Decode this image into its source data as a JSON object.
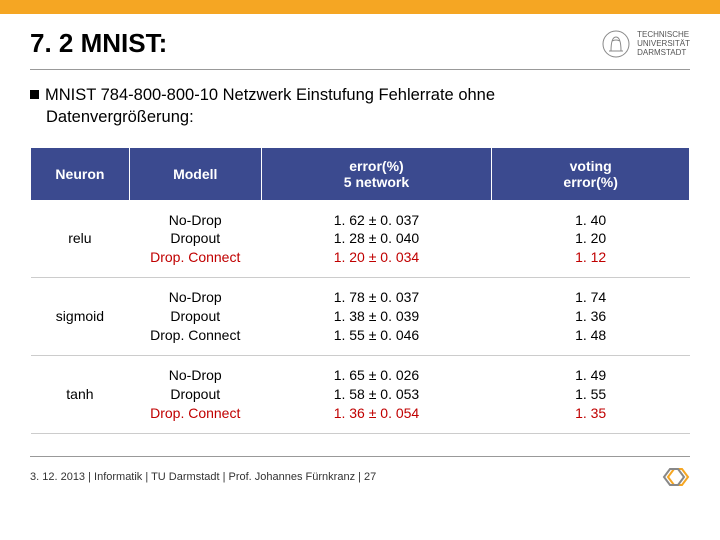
{
  "brand_bar_color": "#f5a623",
  "header": {
    "title": "7. 2 MNIST:",
    "university": {
      "line1": "TECHNISCHE",
      "line2": "UNIVERSITÄT",
      "line3": "DARMSTADT"
    }
  },
  "body": {
    "bullet_line1": "MNIST 784-800-800-10 Netzwerk Einstufung Fehlerrate ohne",
    "bullet_line2": "Datenvergrößerung:"
  },
  "table": {
    "headers": {
      "neuron": "Neuron",
      "model": "Modell",
      "err5": "error(%)\n5 network",
      "vote": "voting\nerror(%)"
    },
    "rows": [
      {
        "neuron": "relu",
        "models": [
          "No-Drop",
          "Dropout",
          "Drop. Connect"
        ],
        "err5": [
          "1. 62 ± 0. 037",
          "1. 28 ± 0. 040",
          "1. 20 ± 0. 034"
        ],
        "vote": [
          "1. 40",
          "1. 20",
          "1. 12"
        ],
        "highlight_index": 2
      },
      {
        "neuron": "sigmoid",
        "models": [
          "No-Drop",
          "Dropout",
          "Drop. Connect"
        ],
        "err5": [
          "1. 78 ± 0. 037",
          "1. 38 ± 0. 039",
          "1. 55 ± 0. 046"
        ],
        "vote": [
          "1. 74",
          "1. 36",
          "1. 48"
        ],
        "highlight_index": -1
      },
      {
        "neuron": "tanh",
        "models": [
          "No-Drop",
          "Dropout",
          "Drop. Connect"
        ],
        "err5": [
          "1. 65 ± 0. 026",
          "1. 58 ± 0. 053",
          "1. 36 ± 0. 054"
        ],
        "vote": [
          "1. 49",
          "1. 55",
          "1. 35"
        ],
        "highlight_index": 2
      }
    ],
    "header_bg": "#3b4a8f",
    "highlight_color": "#c00000"
  },
  "footer": {
    "text": "3. 12. 2013  |  Informatik  |  TU Darmstadt  | Prof. Johannes Fürnkranz |  27"
  }
}
